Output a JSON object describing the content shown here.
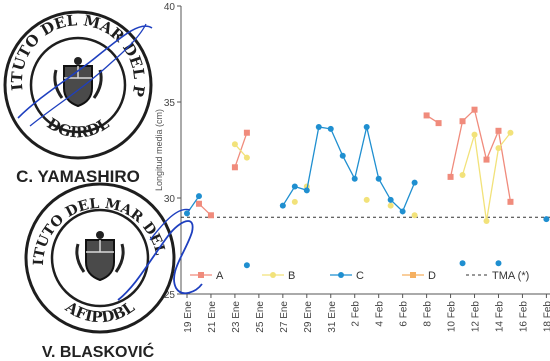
{
  "stamps": [
    {
      "ring_text": "INSTITUTO DEL MAR DEL PERU",
      "inner_text": "DGIRDL",
      "caption": "C. YAMASHIRO"
    },
    {
      "ring_text": "INSTITUTO DEL MAR DEL PERU",
      "inner_text": "AFIPDBL",
      "caption": "V. BLASKOVIĆ"
    }
  ],
  "signature_color": "#1e3fbf",
  "chart_data": {
    "type": "scatter",
    "ylabel": "Longitud media (cm)",
    "ylim": [
      25,
      40
    ],
    "yticks": [
      25,
      30,
      35,
      40
    ],
    "xlim": [
      18.5,
      49.3
    ],
    "x_tick_days": [
      19,
      21,
      23,
      25,
      27,
      29,
      31,
      33,
      35,
      37,
      39,
      41,
      43,
      45,
      47,
      49
    ],
    "x_tick_labels": [
      "19 Ene",
      "21 Ene",
      "23 Ene",
      "25 Ene",
      "27 Ene",
      "29 Ene",
      "31 Ene",
      "2 Feb",
      "4 Feb",
      "6 Feb",
      "8 Feb",
      "10 Feb",
      "12 Feb",
      "14 Feb",
      "16 Feb",
      "18 Feb"
    ],
    "grid": false,
    "legend_position": "bottom",
    "reference_line": {
      "name": "TMA (*)",
      "value": 29,
      "style": "dashed",
      "color": "#333333"
    },
    "series": [
      {
        "name": "A",
        "color": "#f08b7c",
        "marker": "square",
        "segments": [
          [
            [
              20,
              29.7
            ],
            [
              21,
              29.1
            ]
          ],
          [
            [
              23,
              31.6
            ],
            [
              24,
              33.4
            ]
          ],
          [
            [
              39,
              34.3
            ],
            [
              40,
              33.9
            ]
          ],
          [
            [
              41,
              31.1
            ],
            [
              42,
              34.0
            ],
            [
              43,
              34.6
            ],
            [
              44,
              32.0
            ],
            [
              45,
              33.5
            ],
            [
              46,
              29.8
            ]
          ]
        ]
      },
      {
        "name": "B",
        "color": "#f2e27a",
        "marker": "dot",
        "segments": [
          [
            [
              23,
              32.8
            ],
            [
              24,
              32.1
            ]
          ],
          [
            [
              28,
              29.8
            ]
          ],
          [
            [
              29,
              30.6
            ]
          ],
          [
            [
              34,
              29.9
            ]
          ],
          [
            [
              36,
              29.6
            ]
          ],
          [
            [
              38,
              29.1
            ]
          ],
          [
            [
              42,
              31.2
            ],
            [
              43,
              33.3
            ],
            [
              44,
              28.8
            ],
            [
              45,
              32.6
            ],
            [
              46,
              33.4
            ]
          ]
        ]
      },
      {
        "name": "C",
        "color": "#1f8fd0",
        "marker": "dot",
        "segments": [
          [
            [
              19,
              29.2
            ],
            [
              20,
              30.1
            ]
          ],
          [
            [
              27,
              29.6
            ],
            [
              28,
              30.6
            ],
            [
              29,
              30.4
            ],
            [
              30,
              33.7
            ],
            [
              31,
              33.6
            ],
            [
              32,
              32.2
            ],
            [
              33,
              31.0
            ],
            [
              34,
              33.7
            ],
            [
              35,
              31.0
            ],
            [
              36,
              29.9
            ],
            [
              37,
              29.3
            ],
            [
              38,
              30.8
            ]
          ],
          [
            [
              24,
              26.5
            ]
          ],
          [
            [
              42,
              26.6
            ]
          ],
          [
            [
              45,
              26.6
            ]
          ],
          [
            [
              49,
              28.9
            ]
          ]
        ]
      },
      {
        "name": "D",
        "color": "#f5b061",
        "marker": "square",
        "segments": []
      }
    ]
  }
}
